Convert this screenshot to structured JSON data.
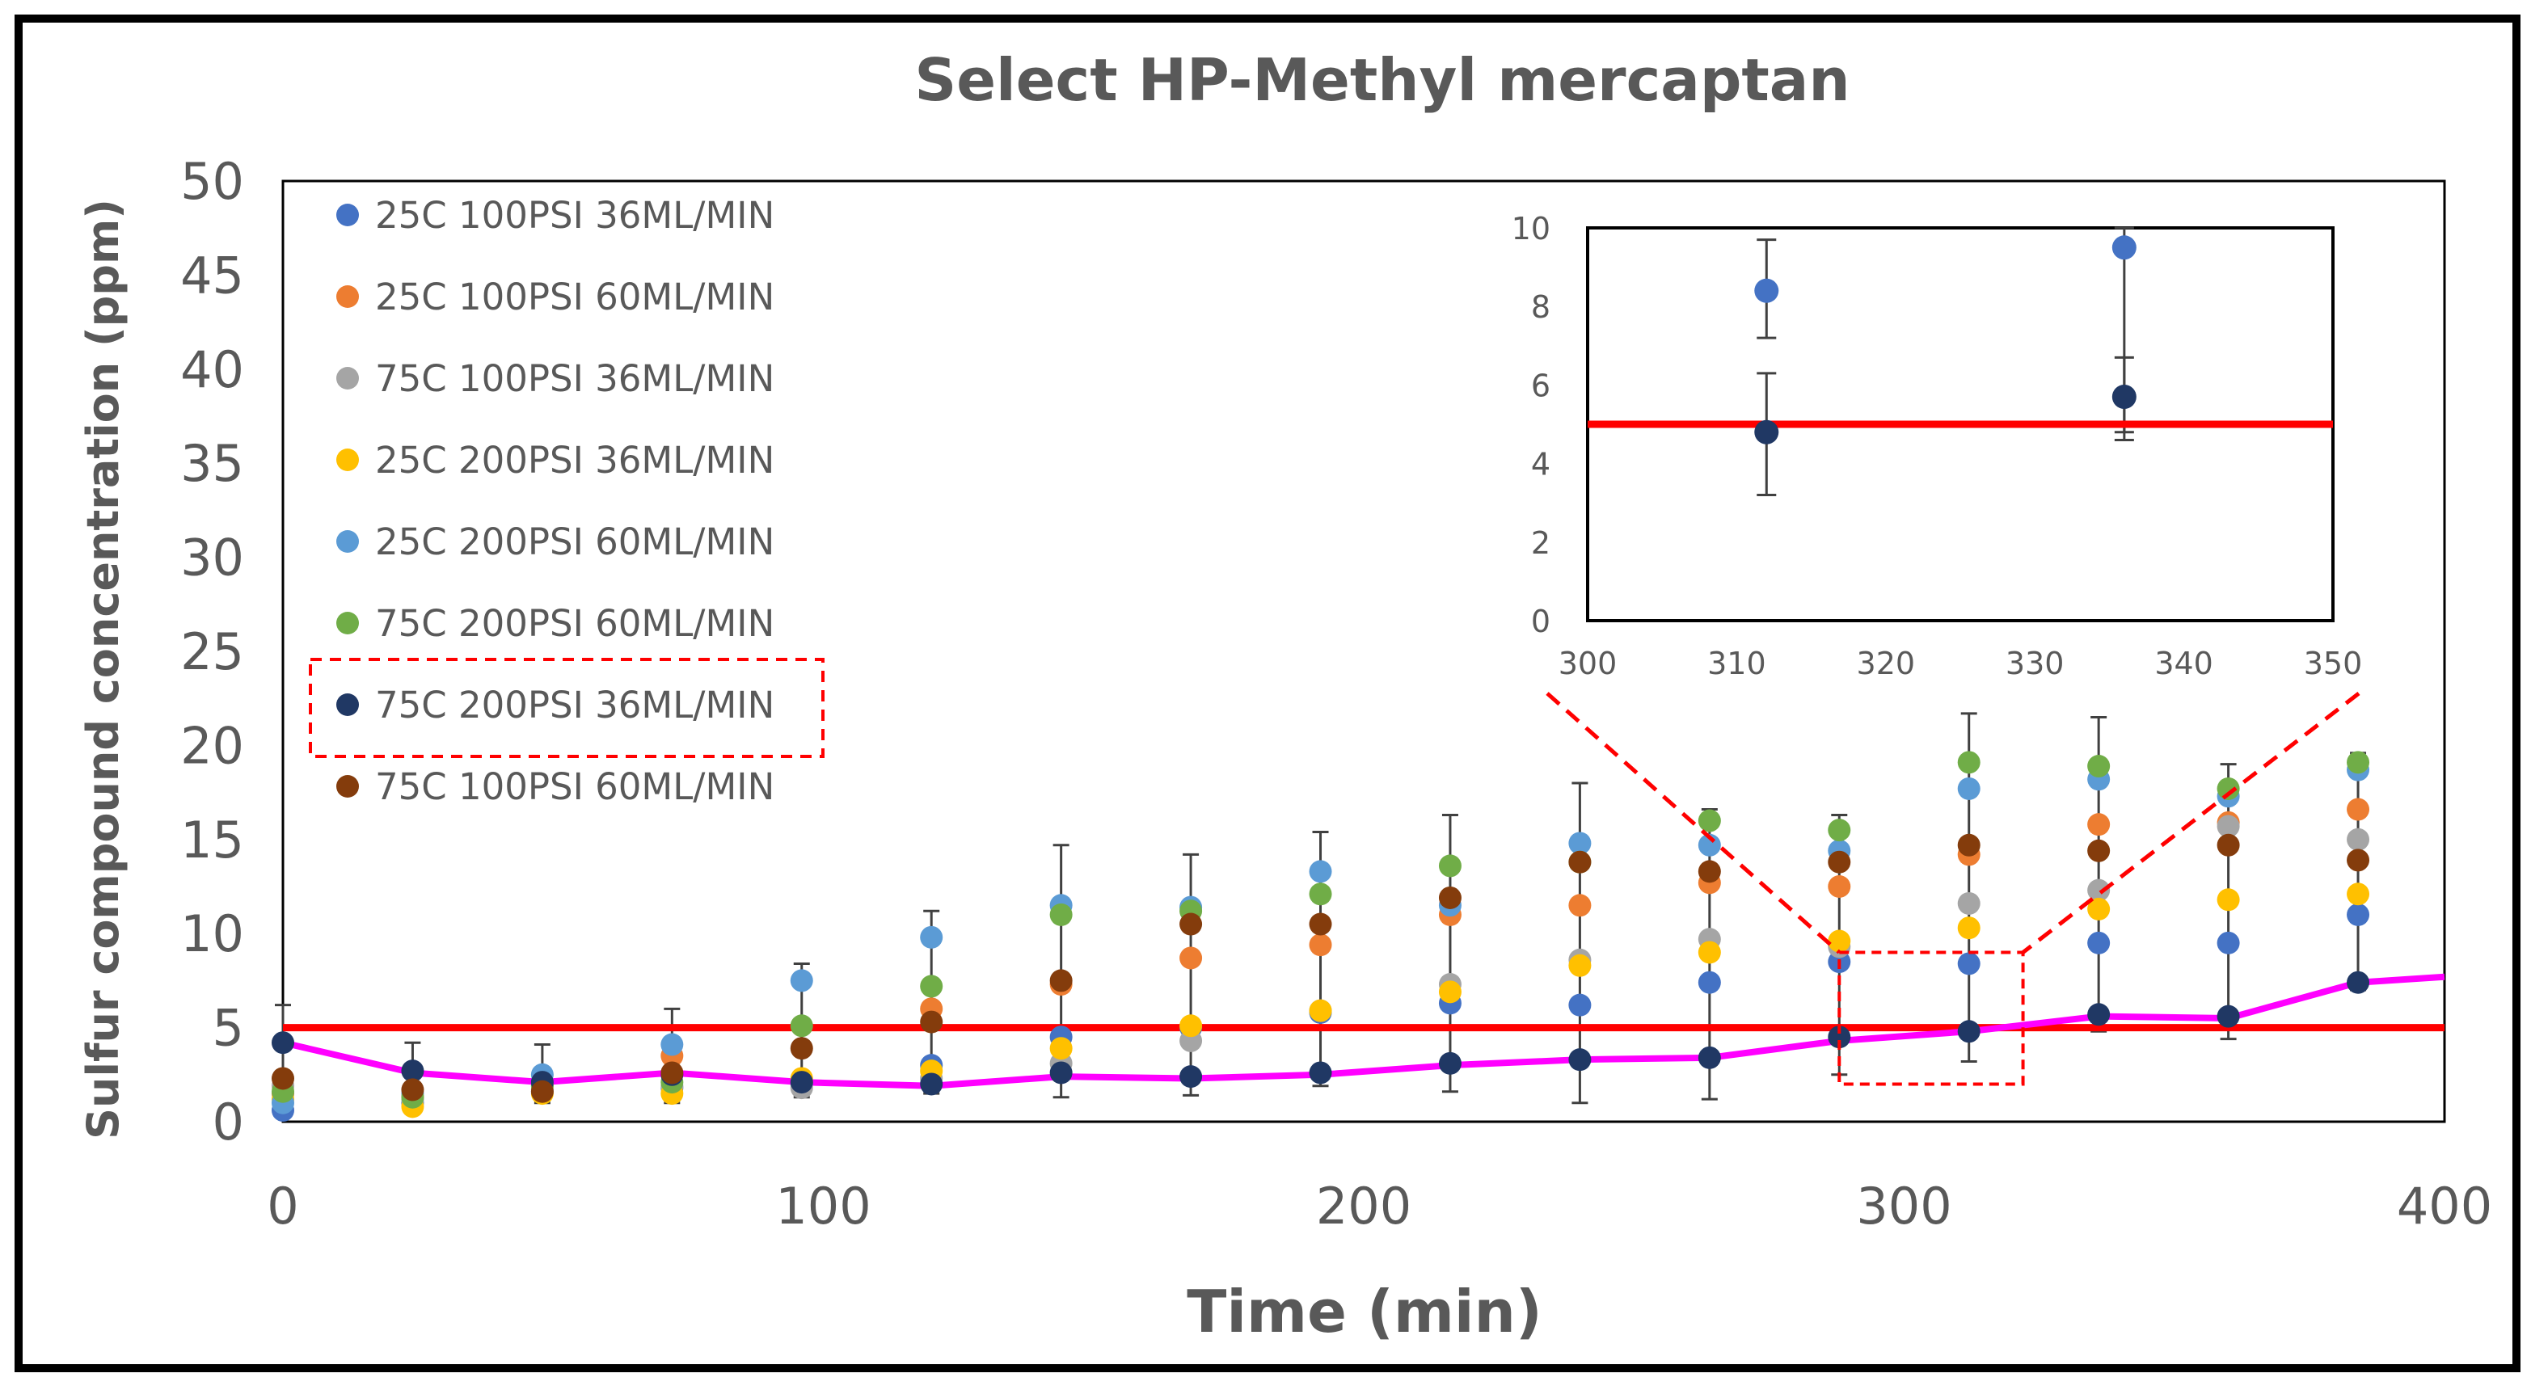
{
  "chart_data": {
    "type": "scatter",
    "title": "Select HP-Methyl mercaptan",
    "xlabel": "Time (min)",
    "ylabel": "Sulfur compound concentration (ppm)",
    "xlim": [
      0,
      400
    ],
    "ylim": [
      0,
      50
    ],
    "xticks": [
      "0",
      "100",
      "200",
      "300",
      "400"
    ],
    "yticks": [
      "0",
      "5",
      "10",
      "15",
      "20",
      "25",
      "30",
      "35",
      "40",
      "45",
      "50"
    ],
    "grid": false,
    "threshold": {
      "value": 5,
      "color": "#ff0000"
    },
    "legend_position": "top-left",
    "highlighted_series": "75C 200PSI 36ML/MIN",
    "x": [
      0,
      24,
      48,
      72,
      96,
      120,
      144,
      168,
      192,
      216,
      240,
      264,
      288,
      312,
      336,
      360,
      384
    ],
    "series": [
      {
        "name": "25C 100PSI 36ML/MIN",
        "color": "#4472c4",
        "values": [
          0.6,
          1.0,
          1.6,
          1.8,
          2.0,
          3.0,
          4.5,
          5.0,
          5.8,
          6.3,
          6.2,
          7.4,
          8.5,
          8.4,
          9.5,
          9.5,
          11.0
        ]
      },
      {
        "name": "25C 100PSI 60ML/MIN",
        "color": "#ed7d31",
        "values": [
          1.5,
          1.3,
          1.9,
          3.5,
          2.1,
          6.0,
          7.3,
          8.7,
          9.4,
          11.0,
          11.5,
          12.7,
          12.5,
          14.2,
          15.8,
          15.9,
          16.6
        ]
      },
      {
        "name": "75C 100PSI 36ML/MIN",
        "color": "#a5a5a5",
        "values": [
          1.9,
          1.2,
          1.7,
          1.9,
          1.8,
          2.3,
          3.1,
          4.3,
          5.9,
          7.3,
          8.6,
          9.7,
          9.3,
          11.6,
          12.3,
          15.7,
          15.0
        ]
      },
      {
        "name": "25C 200PSI 36ML/MIN",
        "color": "#ffc000",
        "values": [
          1.2,
          0.8,
          1.5,
          1.5,
          2.3,
          2.7,
          3.9,
          5.1,
          5.9,
          6.9,
          8.3,
          9.0,
          9.6,
          10.3,
          11.3,
          11.8,
          12.1
        ]
      },
      {
        "name": "25C 200PSI 60ML/MIN",
        "color": "#5b9bd5",
        "values": [
          1.0,
          1.5,
          2.5,
          4.1,
          7.5,
          9.8,
          11.5,
          11.4,
          13.3,
          11.5,
          14.8,
          14.7,
          14.4,
          17.7,
          18.2,
          17.3,
          18.7
        ]
      },
      {
        "name": "75C 200PSI 60ML/MIN",
        "color": "#70ad47",
        "values": [
          1.6,
          1.3,
          1.9,
          2.1,
          5.1,
          7.2,
          11.0,
          11.2,
          12.1,
          13.6,
          13.8,
          16.0,
          15.5,
          19.1,
          18.9,
          17.7,
          19.1
        ]
      },
      {
        "name": "75C 200PSI 36ML/MIN",
        "color": "#203864",
        "values": [
          4.2,
          2.7,
          2.1,
          2.5,
          2.1,
          2.0,
          2.6,
          2.4,
          2.6,
          3.1,
          3.3,
          3.4,
          4.5,
          4.8,
          5.7,
          5.6,
          7.4
        ]
      },
      {
        "name": "75C 100PSI 60ML/MIN",
        "color": "#843c0c",
        "values": [
          2.3,
          1.7,
          1.6,
          2.6,
          3.9,
          5.3,
          7.5,
          10.5,
          10.5,
          11.9,
          13.8,
          13.3,
          13.8,
          14.7,
          14.4,
          14.7,
          13.9
        ]
      }
    ],
    "trend_line": {
      "color": "#ff00ff",
      "x": [
        0,
        24,
        48,
        72,
        96,
        120,
        144,
        168,
        192,
        216,
        240,
        264,
        288,
        312,
        336,
        360,
        384,
        400
      ],
      "values": [
        4.2,
        2.6,
        2.1,
        2.6,
        2.1,
        1.9,
        2.4,
        2.3,
        2.5,
        3.0,
        3.3,
        3.4,
        4.3,
        4.8,
        5.6,
        5.5,
        7.4,
        7.7
      ]
    },
    "error_bars": {
      "x": [
        0,
        24,
        48,
        72,
        96,
        120,
        144,
        168,
        192,
        216,
        240,
        264,
        288,
        312,
        336,
        360,
        384
      ],
      "low": [
        0.5,
        0.5,
        1.0,
        1.0,
        1.3,
        1.5,
        1.3,
        1.4,
        1.9,
        1.6,
        1.0,
        1.2,
        2.5,
        3.2,
        4.8,
        4.4,
        7.0
      ],
      "high": [
        6.2,
        4.2,
        4.1,
        6.0,
        8.4,
        11.2,
        14.7,
        14.2,
        15.4,
        16.3,
        18.0,
        16.6,
        16.3,
        21.7,
        21.5,
        19.0,
        19.6
      ]
    },
    "zoom_box": {
      "x": [
        288,
        322
      ],
      "y": [
        2,
        9
      ]
    },
    "inset": {
      "xlim": [
        300,
        350
      ],
      "ylim": [
        0,
        10
      ],
      "xticks": [
        "300",
        "310",
        "320",
        "330",
        "340",
        "350"
      ],
      "yticks": [
        "0",
        "2",
        "4",
        "6",
        "8",
        "10"
      ],
      "threshold": 5,
      "points": [
        {
          "x": 312,
          "y": 8.4,
          "low": 7.2,
          "high": 9.7,
          "color": "#4472c4"
        },
        {
          "x": 336,
          "y": 9.5,
          "low": 4.8,
          "high": 10.0,
          "color": "#4472c4"
        },
        {
          "x": 312,
          "y": 4.8,
          "low": 3.2,
          "high": 6.3,
          "color": "#203864"
        },
        {
          "x": 336,
          "y": 5.7,
          "low": 4.6,
          "high": 6.7,
          "color": "#203864"
        }
      ]
    }
  }
}
